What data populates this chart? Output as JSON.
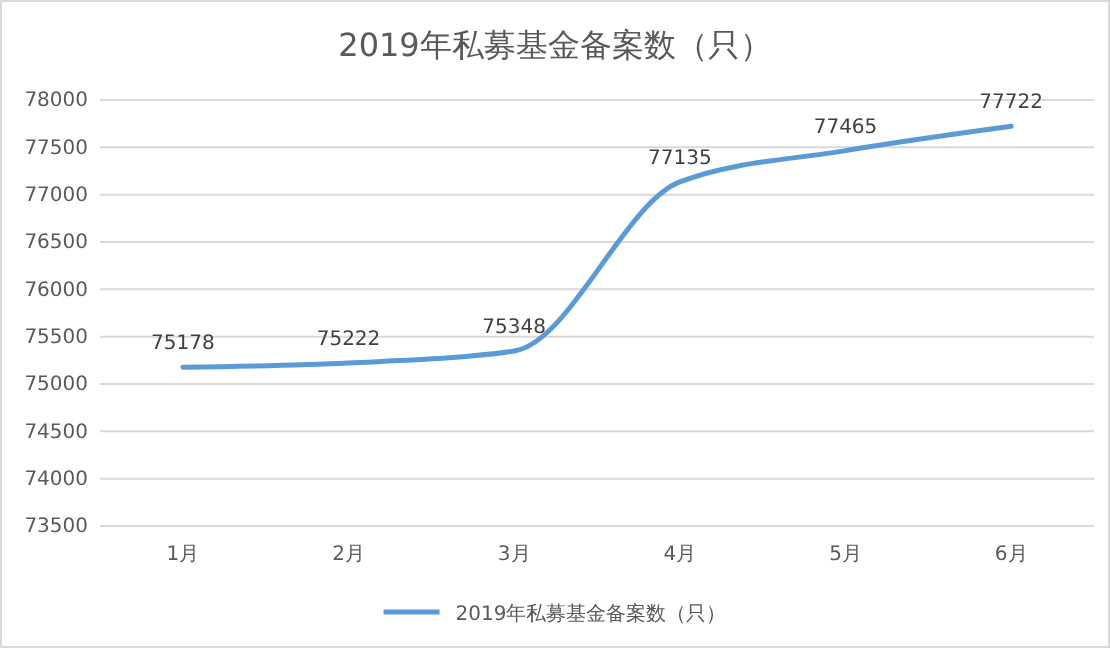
{
  "chart_data": {
    "type": "line",
    "title": "2019年私募基金备案数（只）",
    "categories": [
      "1月",
      "2月",
      "3月",
      "4月",
      "5月",
      "6月"
    ],
    "series": [
      {
        "name": "2019年私募基金备案数（只）",
        "color": "#5b9bd5",
        "values": [
          75178,
          75222,
          75348,
          77135,
          77465,
          77722
        ]
      }
    ],
    "ylim": [
      73500,
      78000
    ],
    "yticks": [
      73500,
      74000,
      74500,
      75000,
      75500,
      76000,
      76500,
      77000,
      77500,
      78000
    ],
    "grid": "y",
    "legend": "bottom",
    "data_labels": true,
    "marker": "none",
    "line_style": "solid"
  }
}
